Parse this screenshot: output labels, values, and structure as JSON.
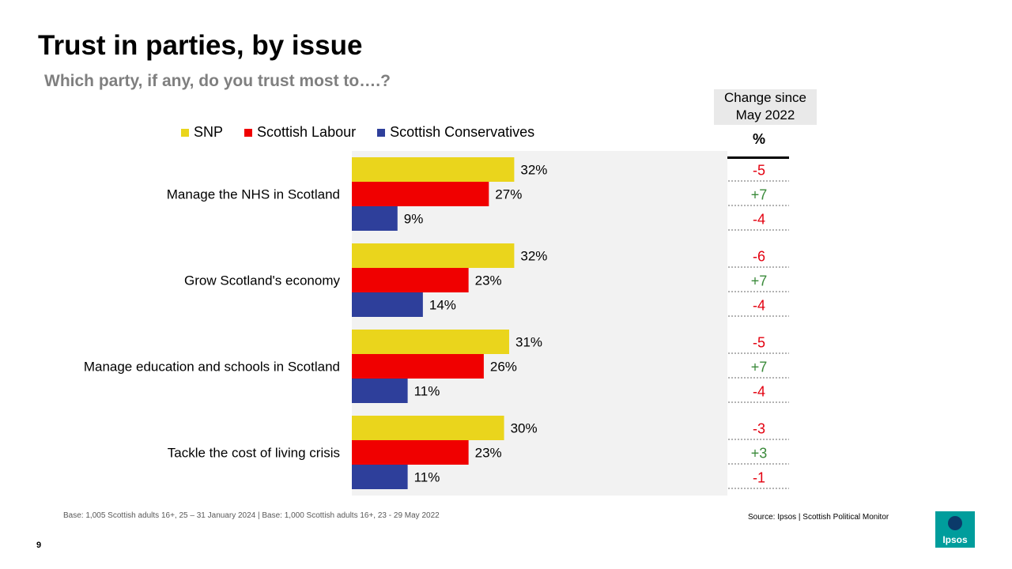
{
  "slide": {
    "title": "Trust in parties, by issue",
    "subtitle": "Which party, if any, do you trust most to….?",
    "page_number": "9",
    "footnote": "Base: 1,005 Scottish adults 16+, 25 – 31 January 2024 | Base: 1,000 Scottish adults 16+, 23 - 29 May 2022",
    "source": "Source: Ipsos | Scottish Political Monitor",
    "logo_text": "Ipsos"
  },
  "change_panel": {
    "header_line1": "Change since",
    "header_line2": "May 2022",
    "unit": "%",
    "positive_color": "#3a8a3a",
    "negative_color": "#e3000f"
  },
  "colors": {
    "SNP": "#ead51c",
    "Scottish Labour": "#f00000",
    "Scottish Conservatives": "#2e3f9b",
    "plot_background": "#f2f2f2"
  },
  "chart_data": {
    "type": "bar",
    "orientation": "horizontal",
    "title": "Trust in parties, by issue",
    "subtitle": "Which party, if any, do you trust most to….?",
    "categories": [
      "Manage the NHS in Scotland",
      "Grow Scotland's economy",
      "Manage education and schools in Scotland",
      "Tackle the cost of living crisis"
    ],
    "series": [
      {
        "name": "SNP",
        "values": [
          32,
          32,
          31,
          30
        ],
        "labels": [
          "32%",
          "32%",
          "31%",
          "30%"
        ],
        "changes": [
          "-5",
          "-6",
          "-5",
          "-3"
        ]
      },
      {
        "name": "Scottish Labour",
        "values": [
          27,
          23,
          26,
          23
        ],
        "labels": [
          "27%",
          "23%",
          "26%",
          "23%"
        ],
        "changes": [
          "+7",
          "+7",
          "+7",
          "+3"
        ]
      },
      {
        "name": "Scottish Conservatives",
        "values": [
          9,
          14,
          11,
          11
        ],
        "labels": [
          "9%",
          "14%",
          "11%",
          "11%"
        ],
        "changes": [
          "-4",
          "-4",
          "-4",
          "-1"
        ]
      }
    ],
    "xlim": [
      0,
      74
    ],
    "legend": "top",
    "grid": false
  }
}
